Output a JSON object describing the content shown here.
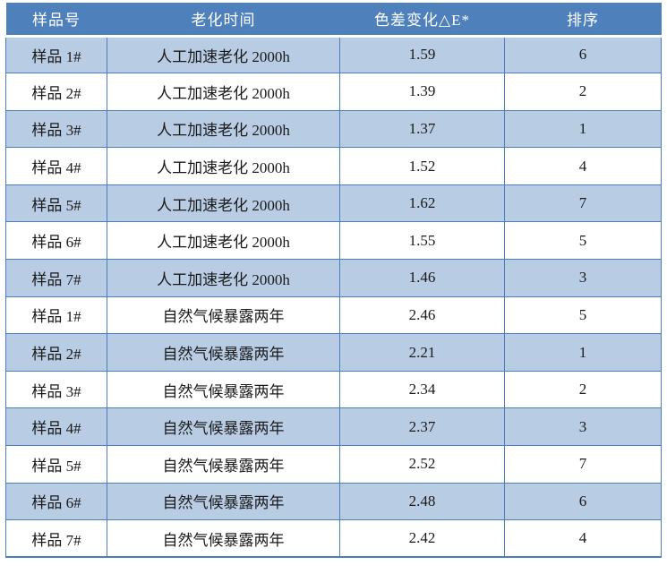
{
  "table": {
    "name": "aging-color-difference-results",
    "columns": [
      {
        "key": "sample",
        "label": "样品号"
      },
      {
        "key": "aging_time",
        "label": "老化时间"
      },
      {
        "key": "delta_e",
        "label": "色差变化△E*"
      },
      {
        "key": "rank",
        "label": "排序"
      }
    ],
    "rows": [
      {
        "sample": "样品 1#",
        "aging_time": "人工加速老化 2000h",
        "delta_e": "1.59",
        "rank": "6"
      },
      {
        "sample": "样品 2#",
        "aging_time": "人工加速老化 2000h",
        "delta_e": "1.39",
        "rank": "2"
      },
      {
        "sample": "样品 3#",
        "aging_time": "人工加速老化 2000h",
        "delta_e": "1.37",
        "rank": "1"
      },
      {
        "sample": "样品 4#",
        "aging_time": "人工加速老化 2000h",
        "delta_e": "1.52",
        "rank": "4"
      },
      {
        "sample": "样品 5#",
        "aging_time": "人工加速老化 2000h",
        "delta_e": "1.62",
        "rank": "7"
      },
      {
        "sample": "样品 6#",
        "aging_time": "人工加速老化 2000h",
        "delta_e": "1.55",
        "rank": "5"
      },
      {
        "sample": "样品 7#",
        "aging_time": "人工加速老化 2000h",
        "delta_e": "1.46",
        "rank": "3"
      },
      {
        "sample": "样品 1#",
        "aging_time": "自然气候暴露两年",
        "delta_e": "2.46",
        "rank": "5"
      },
      {
        "sample": "样品 2#",
        "aging_time": "自然气候暴露两年",
        "delta_e": "2.21",
        "rank": "1"
      },
      {
        "sample": "样品 3#",
        "aging_time": "自然气候暴露两年",
        "delta_e": "2.34",
        "rank": "2"
      },
      {
        "sample": "样品 4#",
        "aging_time": "自然气候暴露两年",
        "delta_e": "2.37",
        "rank": "3"
      },
      {
        "sample": "样品 5#",
        "aging_time": "自然气候暴露两年",
        "delta_e": "2.52",
        "rank": "7"
      },
      {
        "sample": "样品 6#",
        "aging_time": "自然气候暴露两年",
        "delta_e": "2.48",
        "rank": "6"
      },
      {
        "sample": "样品 7#",
        "aging_time": "自然气候暴露两年",
        "delta_e": "2.42",
        "rank": "4"
      }
    ]
  },
  "colors": {
    "header_bg": "#4e80bc",
    "band_bg": "#b8cce4",
    "border": "#4a7ebc",
    "header_text": "#ffffff",
    "body_text": "#1a1a1a"
  }
}
